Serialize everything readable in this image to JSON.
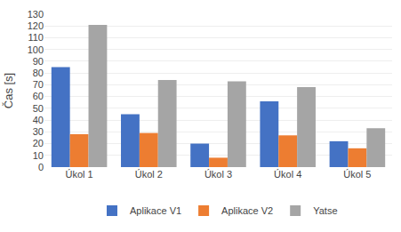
{
  "chart_data": {
    "type": "bar",
    "ylabel": "Čas [s]",
    "categories": [
      "Úkol 1",
      "Úkol 2",
      "Úkol 3",
      "Úkol 4",
      "Úkol 5"
    ],
    "series": [
      {
        "name": "Aplikace V1",
        "color": "#4472C4",
        "values": [
          85,
          45,
          20,
          56,
          22
        ]
      },
      {
        "name": "Aplikace V2",
        "color": "#ED7D31",
        "values": [
          28,
          29,
          8,
          27,
          16
        ]
      },
      {
        "name": "Yatse",
        "color": "#A5A5A5",
        "values": [
          121,
          74,
          73,
          68,
          33
        ]
      }
    ],
    "ylim": [
      0,
      130
    ],
    "yticks": [
      0,
      10,
      20,
      30,
      40,
      50,
      60,
      70,
      80,
      90,
      100,
      110,
      120,
      130
    ],
    "grid": true,
    "legend": "bottom"
  }
}
